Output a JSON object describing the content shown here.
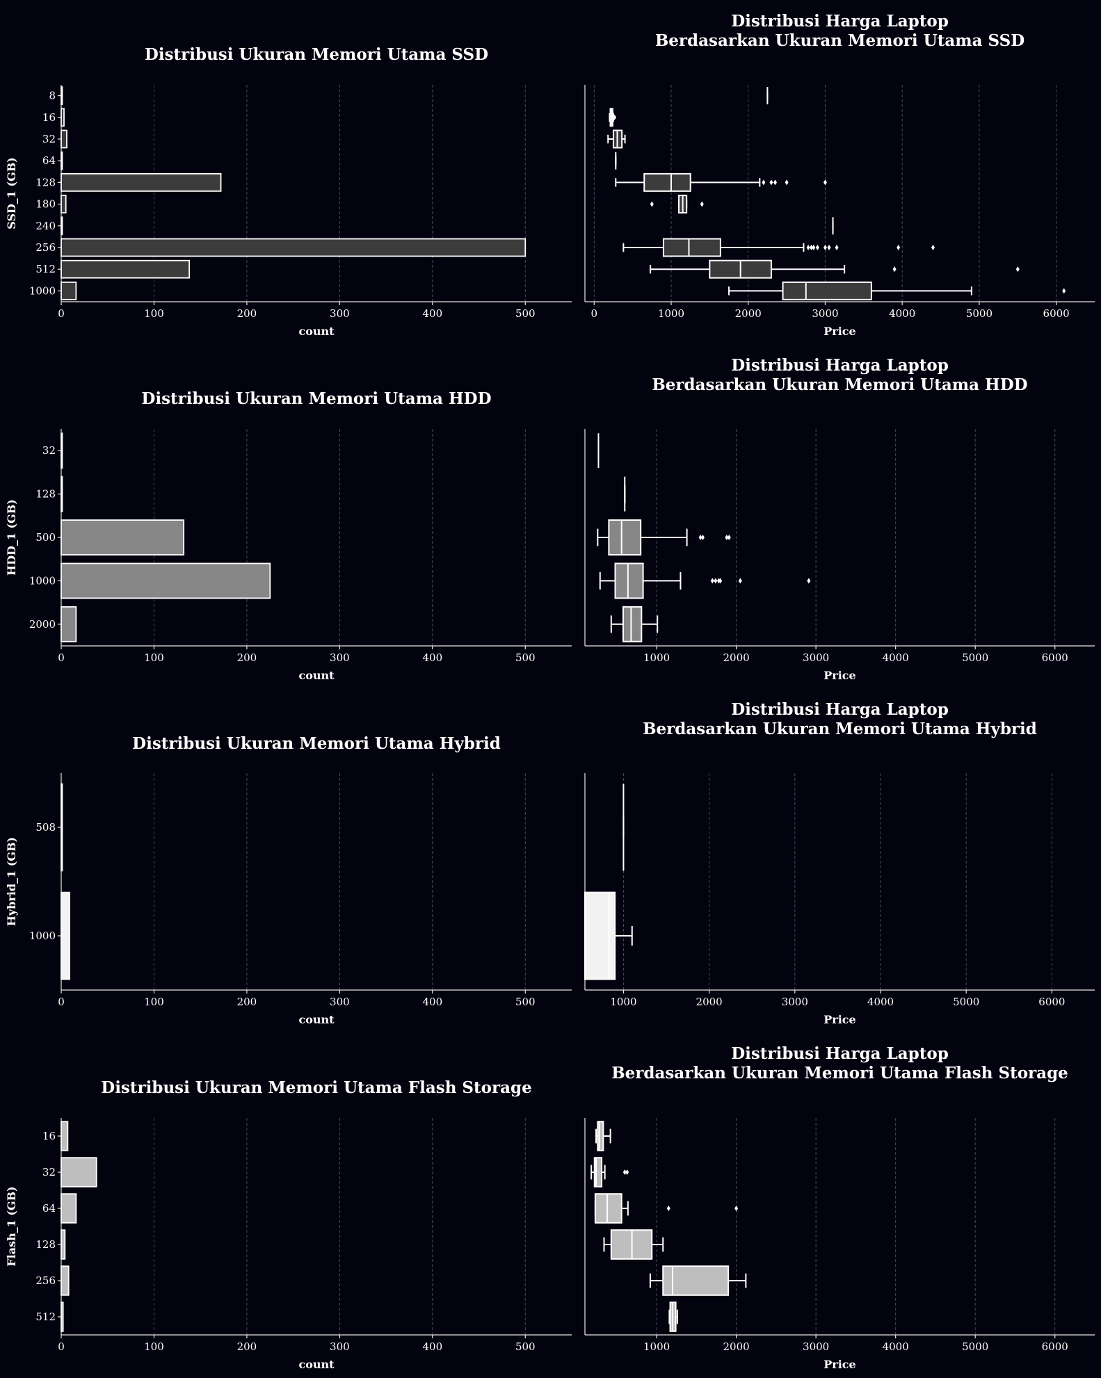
{
  "chart_data": [
    {
      "type": "bar",
      "orientation": "horizontal",
      "title": "Distribusi Ukuran Memori Utama SSD",
      "xlabel": "count",
      "ylabel": "SSD_1 (GB)",
      "categories": [
        "8",
        "16",
        "32",
        "64",
        "128",
        "180",
        "240",
        "256",
        "512",
        "1000"
      ],
      "values": [
        1,
        3,
        6,
        1,
        172,
        5,
        1,
        500,
        138,
        16
      ],
      "xlim": [
        0,
        550
      ],
      "xticks": [
        0,
        100,
        200,
        300,
        400,
        500
      ],
      "color": "#3c3c3c"
    },
    {
      "type": "box",
      "orientation": "horizontal",
      "title": "Distribusi Harga Laptop\nBerdasarkan Ukuran Memori Utama SSD",
      "xlabel": "Price",
      "ylabel": "",
      "categories": [
        "8",
        "16",
        "32",
        "64",
        "128",
        "180",
        "240",
        "256",
        "512",
        "1000"
      ],
      "boxes": [
        {
          "whislo": 2250,
          "q1": 2250,
          "med": 2250,
          "q3": 2250,
          "whishi": 2250,
          "fliers": []
        },
        {
          "whislo": 200,
          "q1": 210,
          "med": 230,
          "q3": 240,
          "whishi": 250,
          "fliers": [
            265
          ]
        },
        {
          "whislo": 180,
          "q1": 250,
          "med": 300,
          "q3": 360,
          "whishi": 400,
          "fliers": []
        },
        {
          "whislo": 280,
          "q1": 280,
          "med": 280,
          "q3": 280,
          "whishi": 280,
          "fliers": []
        },
        {
          "whislo": 280,
          "q1": 650,
          "med": 1000,
          "q3": 1250,
          "whishi": 2150,
          "fliers": [
            2200,
            2300,
            2350,
            2500,
            3000
          ]
        },
        {
          "whislo": 1100,
          "q1": 1100,
          "med": 1150,
          "q3": 1200,
          "whishi": 1200,
          "fliers": [
            750,
            1400
          ]
        },
        {
          "whislo": 3100,
          "q1": 3100,
          "med": 3100,
          "q3": 3100,
          "whishi": 3100,
          "fliers": []
        },
        {
          "whislo": 380,
          "q1": 900,
          "med": 1230,
          "q3": 1640,
          "whishi": 2720,
          "fliers": [
            2780,
            2820,
            2850,
            2900,
            3000,
            3050,
            3150,
            3950,
            4400
          ]
        },
        {
          "whislo": 730,
          "q1": 1500,
          "med": 1900,
          "q3": 2300,
          "whishi": 3250,
          "fliers": [
            3900,
            5500
          ]
        },
        {
          "whislo": 1750,
          "q1": 2450,
          "med": 2750,
          "q3": 3600,
          "whishi": 4900,
          "fliers": [
            6100
          ]
        }
      ],
      "xlim": [
        -120,
        6500
      ],
      "xticks": [
        0,
        1000,
        2000,
        3000,
        4000,
        5000,
        6000
      ],
      "color": "#3c3c3c"
    },
    {
      "type": "bar",
      "orientation": "horizontal",
      "title": "Distribusi Ukuran Memori Utama HDD",
      "xlabel": "count",
      "ylabel": "HDD_1 (GB)",
      "categories": [
        "32",
        "128",
        "500",
        "1000",
        "2000"
      ],
      "values": [
        1,
        1,
        132,
        225,
        16
      ],
      "xlim": [
        0,
        550
      ],
      "xticks": [
        0,
        100,
        200,
        300,
        400,
        500
      ],
      "color": "#878787"
    },
    {
      "type": "box",
      "orientation": "horizontal",
      "title": "Distribusi Harga Laptop\nBerdasarkan Ukuran Memori Utama HDD",
      "xlabel": "Price",
      "ylabel": "",
      "categories": [
        "32",
        "128",
        "500",
        "1000",
        "2000"
      ],
      "boxes": [
        {
          "whislo": 270,
          "q1": 270,
          "med": 270,
          "q3": 270,
          "whishi": 270,
          "fliers": []
        },
        {
          "whislo": 600,
          "q1": 600,
          "med": 600,
          "q3": 600,
          "whishi": 600,
          "fliers": []
        },
        {
          "whislo": 260,
          "q1": 400,
          "med": 560,
          "q3": 800,
          "whishi": 1380,
          "fliers": [
            1550,
            1580,
            1880,
            1910
          ]
        },
        {
          "whislo": 290,
          "q1": 480,
          "med": 640,
          "q3": 830,
          "whishi": 1300,
          "fliers": [
            1700,
            1740,
            1780,
            1800,
            2050,
            2910
          ]
        },
        {
          "whislo": 430,
          "q1": 580,
          "med": 680,
          "q3": 810,
          "whishi": 1010,
          "fliers": []
        }
      ],
      "xlim": [
        100,
        6500
      ],
      "xticks": [
        1000,
        2000,
        3000,
        4000,
        5000,
        6000
      ],
      "color": "#878787"
    },
    {
      "type": "bar",
      "orientation": "horizontal",
      "title": "Distribusi Ukuran Memori Utama Hybrid",
      "xlabel": "count",
      "ylabel": "Hybrid_1 (GB)",
      "categories": [
        "508",
        "1000"
      ],
      "values": [
        1,
        9
      ],
      "xlim": [
        0,
        550
      ],
      "xticks": [
        0,
        100,
        200,
        300,
        400,
        500
      ],
      "color": "#f2f2f2"
    },
    {
      "type": "box",
      "orientation": "horizontal",
      "title": "Distribusi Harga Laptop\nBerdasarkan Ukuran Memori Utama Hybrid",
      "xlabel": "Price",
      "ylabel": "",
      "categories": [
        "508",
        "1000"
      ],
      "boxes": [
        {
          "whislo": 1000,
          "q1": 1000,
          "med": 1000,
          "q3": 1000,
          "whishi": 1000,
          "fliers": []
        },
        {
          "whislo": 550,
          "q1": 550,
          "med": 830,
          "q3": 900,
          "whishi": 1100,
          "fliers": []
        }
      ],
      "xlim": [
        550,
        6500
      ],
      "xticks": [
        1000,
        2000,
        3000,
        4000,
        5000,
        6000
      ],
      "color": "#f2f2f2"
    },
    {
      "type": "bar",
      "orientation": "horizontal",
      "title": "Distribusi Ukuran Memori Utama Flash Storage",
      "xlabel": "count",
      "ylabel": "Flash_1 (GB)",
      "categories": [
        "16",
        "32",
        "64",
        "128",
        "256",
        "512"
      ],
      "values": [
        7,
        38,
        16,
        4,
        8,
        2
      ],
      "xlim": [
        0,
        550
      ],
      "xticks": [
        0,
        100,
        200,
        300,
        400,
        500
      ],
      "color": "#bebebe"
    },
    {
      "type": "box",
      "orientation": "horizontal",
      "title": "Distribusi Harga Laptop\nBerdasarkan Ukuran Memori Utama Flash Storage",
      "xlabel": "Price",
      "ylabel": "",
      "categories": [
        "16",
        "32",
        "64",
        "128",
        "256",
        "512"
      ],
      "boxes": [
        {
          "whislo": 240,
          "q1": 260,
          "med": 280,
          "q3": 330,
          "whishi": 420,
          "fliers": []
        },
        {
          "whislo": 180,
          "q1": 220,
          "med": 240,
          "q3": 310,
          "whishi": 350,
          "fliers": [
            600,
            630
          ]
        },
        {
          "whislo": 230,
          "q1": 230,
          "med": 380,
          "q3": 560,
          "whishi": 640,
          "fliers": [
            1150,
            2000
          ]
        },
        {
          "whislo": 340,
          "q1": 430,
          "med": 690,
          "q3": 940,
          "whishi": 1080,
          "fliers": []
        },
        {
          "whislo": 920,
          "q1": 1080,
          "med": 1200,
          "q3": 1900,
          "whishi": 2120,
          "fliers": []
        },
        {
          "whislo": 1160,
          "q1": 1170,
          "med": 1200,
          "q3": 1240,
          "whishi": 1260,
          "fliers": []
        }
      ],
      "xlim": [
        100,
        6500
      ],
      "xticks": [
        1000,
        2000,
        3000,
        4000,
        5000,
        6000
      ],
      "color": "#bebebe"
    }
  ]
}
